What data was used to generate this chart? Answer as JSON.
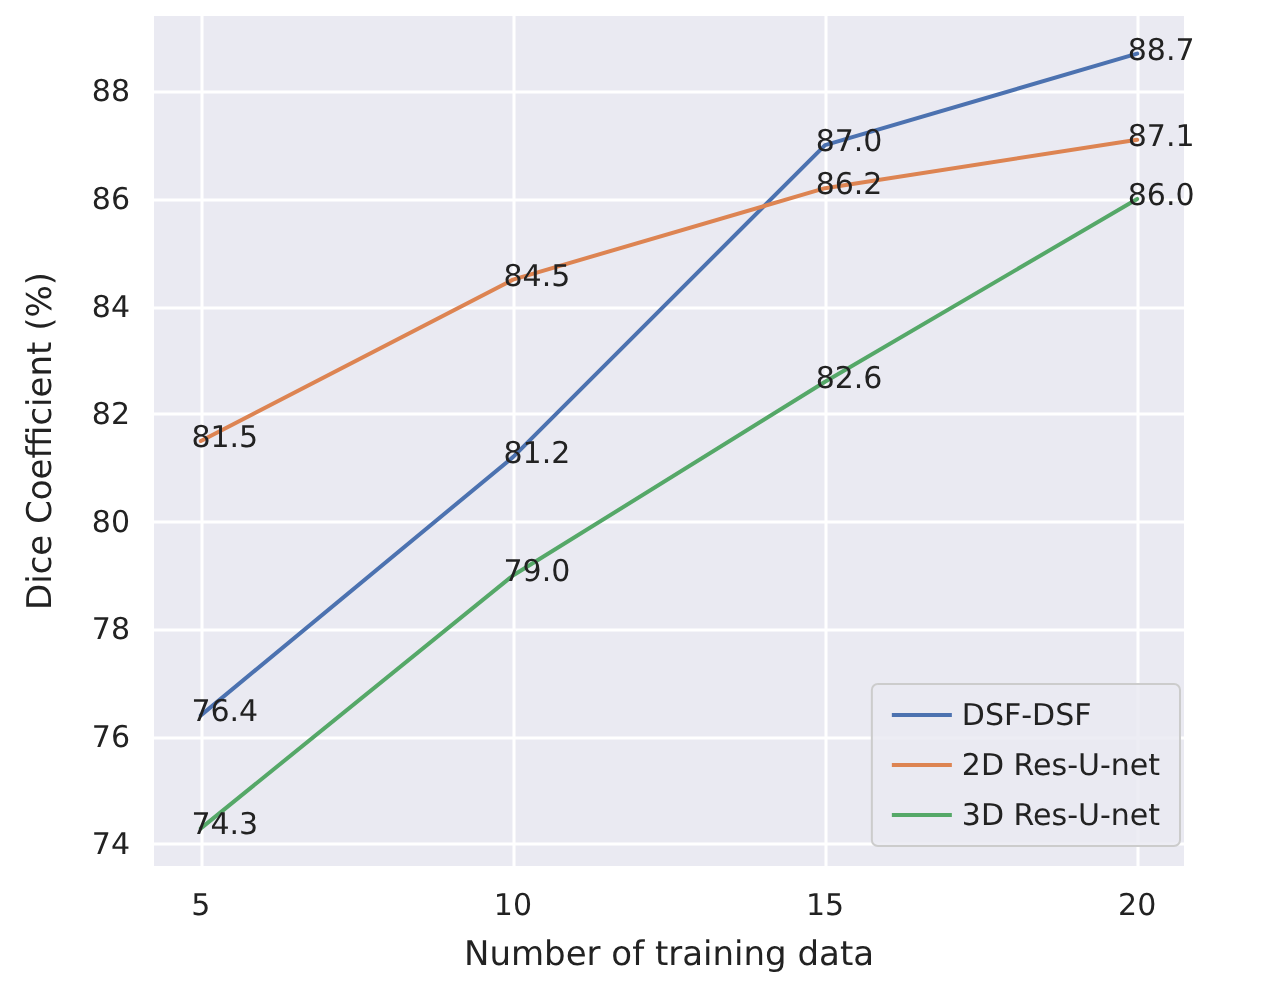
{
  "chart_data": {
    "type": "line",
    "xlabel": "Number of training data",
    "ylabel": "Dice Coefficient (%)",
    "x": [
      5,
      10,
      15,
      20
    ],
    "series": [
      {
        "name": "DSF-DSF",
        "color": "#4c72b0",
        "values": [
          76.4,
          81.2,
          87.0,
          88.7
        ],
        "value_labels": [
          "76.4",
          "81.2",
          "87.0",
          "88.7"
        ]
      },
      {
        "name": "2D Res-U-net",
        "color": "#dd8452",
        "values": [
          81.5,
          84.5,
          86.2,
          87.1
        ],
        "value_labels": [
          "81.5",
          "84.5",
          "86.2",
          "87.1"
        ]
      },
      {
        "name": "3D Res-U-net",
        "color": "#55a868",
        "values": [
          74.3,
          79.0,
          82.6,
          86.0
        ],
        "value_labels": [
          "74.3",
          "79.0",
          "82.6",
          "86.0"
        ]
      }
    ],
    "xlim": [
      4.25,
      20.75
    ],
    "xticks": [
      5,
      10,
      15,
      20
    ],
    "ylim": [
      73.6,
      89.4
    ],
    "yticks": [
      74,
      76,
      78,
      80,
      82,
      84,
      86,
      88
    ],
    "grid": true,
    "legend": "bottom right",
    "line_style": "solid"
  }
}
